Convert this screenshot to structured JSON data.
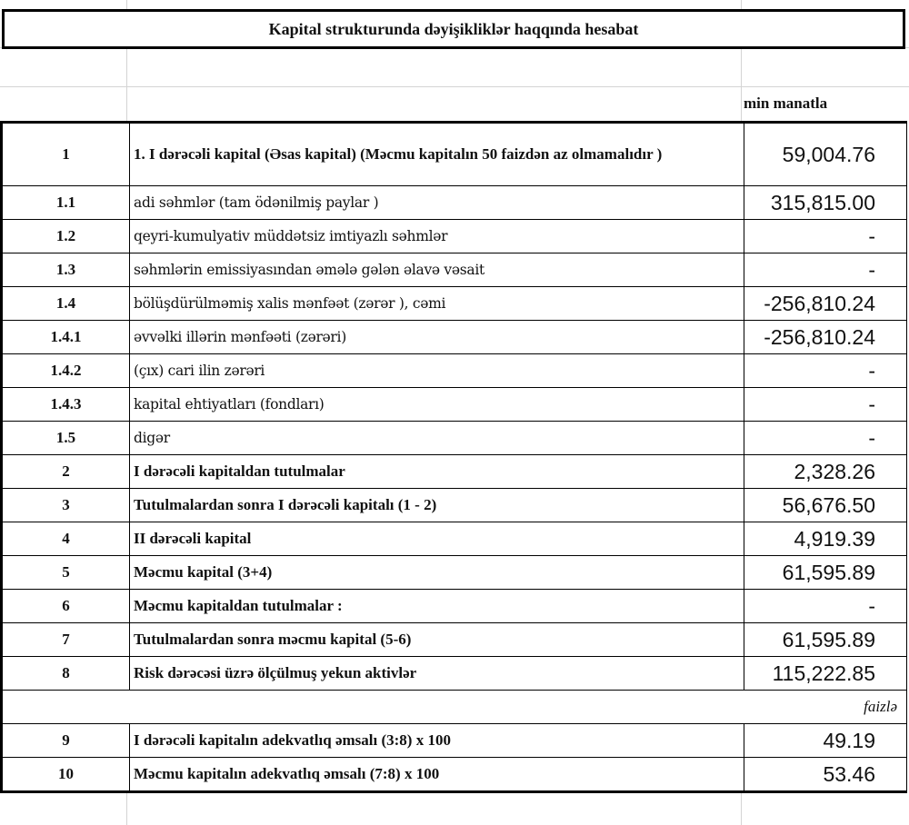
{
  "title": "Kapital strukturunda dəyişikliklər haqqında hesabat",
  "unit_label": "min manatla",
  "percent_label": "faizlə",
  "rows": [
    {
      "no": "1",
      "label": "1. I dərəcəli kapital (Əsas kapital) (Məcmu kapitalın 50 faizdən  az olmamalıdır )",
      "value": "59,004.76",
      "bold": true
    },
    {
      "no": "1.1",
      "label": "adi səhmlər (tam ödənilmiş paylar )",
      "value": "315,815.00",
      "bold": false
    },
    {
      "no": "1.2",
      "label": "qeyri-kumulyativ müddətsiz imtiyazlı səhmlər",
      "value": "-",
      "bold": false
    },
    {
      "no": "1.3",
      "label": "səhmlərin emissiyasından əmələ gələn  əlavə vəsait",
      "value": "-",
      "bold": false
    },
    {
      "no": "1.4",
      "label": "bölüşdürülməmiş xalis mənfəət (zərər ), cəmi",
      "value": "-256,810.24",
      "bold": false
    },
    {
      "no": "1.4.1",
      "label": "əvvəlki illərin mənfəəti (zərəri)",
      "value": "-256,810.24",
      "bold": false
    },
    {
      "no": "1.4.2",
      "label": "(çıx) cari ilin zərəri",
      "value": "-",
      "bold": false
    },
    {
      "no": "1.4.3",
      "label": "kapital ehtiyatları (fondları)",
      "value": "-",
      "bold": false
    },
    {
      "no": "1.5",
      "label": "digər",
      "value": "-",
      "bold": false
    },
    {
      "no": "2",
      "label": "I dərəcəli kapitaldan  tutulmalar",
      "value": "2,328.26",
      "bold": true
    },
    {
      "no": "3",
      "label": "Tutulmalardan  sonra I dərəcəli kapitalı (1 - 2)",
      "value": "56,676.50",
      "bold": true
    },
    {
      "no": "4",
      "label": "II dərəcəli  kapital",
      "value": "4,919.39",
      "bold": true
    },
    {
      "no": "5",
      "label": "Məcmu kapital (3+4)",
      "value": "61,595.89",
      "bold": true
    },
    {
      "no": "6",
      "label": "Məcmu kapitaldan tutulmalar :",
      "value": "-",
      "bold": true
    },
    {
      "no": "7",
      "label": "Tutulmalardan sonra məcmu kapital (5-6)",
      "value": "61,595.89",
      "bold": true
    },
    {
      "no": "8",
      "label": "Risk dərəcəsi üzrə ölçülmuş  yekun aktivlər",
      "value": "115,222.85",
      "bold": true
    }
  ],
  "ratio_rows": [
    {
      "no": "9",
      "label": "I dərəcəli  kapitalın  adekvatlıq əmsalı (3:8) x 100",
      "value": "49.19"
    },
    {
      "no": "10",
      "label": "Məcmu kapitalın  adekvatlıq  əmsalı (7:8) x 100",
      "value": "53.46"
    }
  ]
}
